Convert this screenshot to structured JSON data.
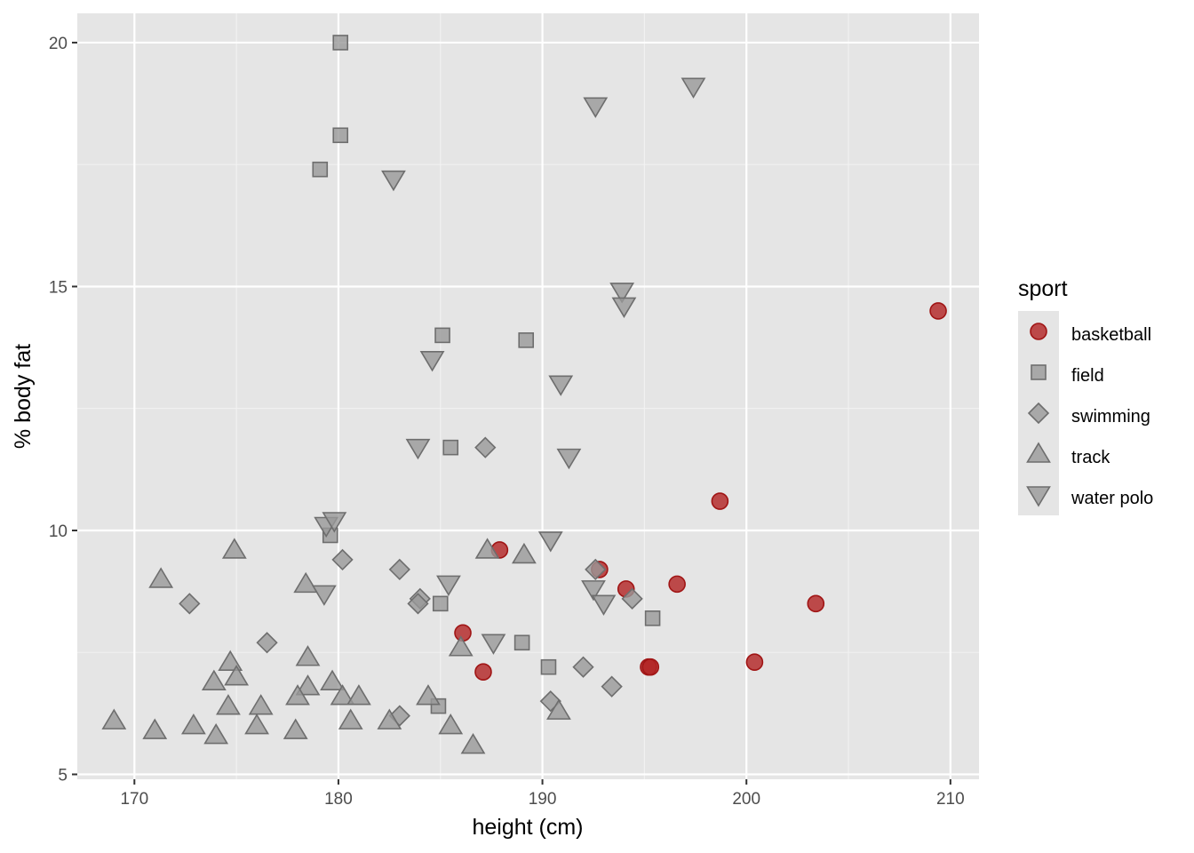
{
  "chart_data": {
    "type": "scatter",
    "title": "",
    "xlabel": "height (cm)",
    "ylabel": "% body fat",
    "xlim": [
      167.2,
      211.4
    ],
    "ylim": [
      4.9,
      20.6
    ],
    "x_ticks": [
      170,
      180,
      190,
      200,
      210
    ],
    "y_ticks": [
      5,
      10,
      15,
      20
    ],
    "x_tick_labels": [
      "170",
      "180",
      "190",
      "200",
      "210"
    ],
    "y_tick_labels": [
      "5",
      "10",
      "15",
      "20"
    ],
    "grid": true,
    "panel_background": "#e5e5e5",
    "legend": {
      "title": "sport",
      "position": "right",
      "entries": [
        "basketball",
        "field",
        "swimming",
        "track",
        "water polo"
      ]
    },
    "series": [
      {
        "name": "basketball",
        "shape": "circle",
        "color": "#b22222",
        "points": [
          [
            209.4,
            14.5
          ],
          [
            198.7,
            10.6
          ],
          [
            203.4,
            8.5
          ],
          [
            200.4,
            7.3
          ],
          [
            196.6,
            8.9
          ],
          [
            194.1,
            8.8
          ],
          [
            192.8,
            9.2
          ],
          [
            195.2,
            7.2
          ],
          [
            195.3,
            7.2
          ],
          [
            187.9,
            9.6
          ],
          [
            186.1,
            7.9
          ],
          [
            187.1,
            7.1
          ]
        ]
      },
      {
        "name": "field",
        "shape": "square",
        "color": "#999999",
        "points": [
          [
            180.1,
            20.0
          ],
          [
            180.1,
            18.1
          ],
          [
            179.1,
            17.4
          ],
          [
            185.1,
            14.0
          ],
          [
            189.2,
            13.9
          ],
          [
            185.5,
            11.7
          ],
          [
            179.6,
            9.9
          ],
          [
            185.0,
            8.5
          ],
          [
            195.4,
            8.2
          ],
          [
            189.0,
            7.7
          ],
          [
            190.3,
            7.2
          ],
          [
            184.9,
            6.4
          ]
        ]
      },
      {
        "name": "swimming",
        "shape": "diamond",
        "color": "#999999",
        "points": [
          [
            187.2,
            11.7
          ],
          [
            180.2,
            9.4
          ],
          [
            183.0,
            9.2
          ],
          [
            192.6,
            9.2
          ],
          [
            172.7,
            8.5
          ],
          [
            184.0,
            8.6
          ],
          [
            183.9,
            8.5
          ],
          [
            194.4,
            8.6
          ],
          [
            176.5,
            7.7
          ],
          [
            192.0,
            7.2
          ],
          [
            193.4,
            6.8
          ],
          [
            190.4,
            6.5
          ],
          [
            183.0,
            6.2
          ]
        ]
      },
      {
        "name": "track",
        "shape": "triangle-up",
        "color": "#999999",
        "points": [
          [
            174.9,
            9.6
          ],
          [
            171.3,
            9.0
          ],
          [
            178.4,
            8.9
          ],
          [
            187.3,
            9.6
          ],
          [
            189.1,
            9.5
          ],
          [
            174.7,
            7.3
          ],
          [
            175.0,
            7.0
          ],
          [
            178.5,
            7.4
          ],
          [
            186.0,
            7.6
          ],
          [
            173.9,
            6.9
          ],
          [
            178.5,
            6.8
          ],
          [
            179.7,
            6.9
          ],
          [
            174.6,
            6.4
          ],
          [
            176.2,
            6.4
          ],
          [
            178.0,
            6.6
          ],
          [
            180.2,
            6.6
          ],
          [
            181.0,
            6.6
          ],
          [
            184.4,
            6.6
          ],
          [
            169.0,
            6.1
          ],
          [
            171.0,
            5.9
          ],
          [
            172.9,
            6.0
          ],
          [
            174.0,
            5.8
          ],
          [
            176.0,
            6.0
          ],
          [
            177.9,
            5.9
          ],
          [
            180.6,
            6.1
          ],
          [
            182.5,
            6.1
          ],
          [
            185.5,
            6.0
          ],
          [
            186.6,
            5.6
          ],
          [
            190.8,
            6.3
          ]
        ]
      },
      {
        "name": "water polo",
        "shape": "triangle-down",
        "color": "#999999",
        "points": [
          [
            197.4,
            19.1
          ],
          [
            192.6,
            18.7
          ],
          [
            182.7,
            17.2
          ],
          [
            193.9,
            14.9
          ],
          [
            194.0,
            14.6
          ],
          [
            184.6,
            13.5
          ],
          [
            190.9,
            13.0
          ],
          [
            183.9,
            11.7
          ],
          [
            191.3,
            11.5
          ],
          [
            179.4,
            10.1
          ],
          [
            179.8,
            10.2
          ],
          [
            190.4,
            9.8
          ],
          [
            185.4,
            8.9
          ],
          [
            179.3,
            8.7
          ],
          [
            192.5,
            8.8
          ],
          [
            193.0,
            8.5
          ],
          [
            187.6,
            7.7
          ]
        ]
      }
    ]
  }
}
